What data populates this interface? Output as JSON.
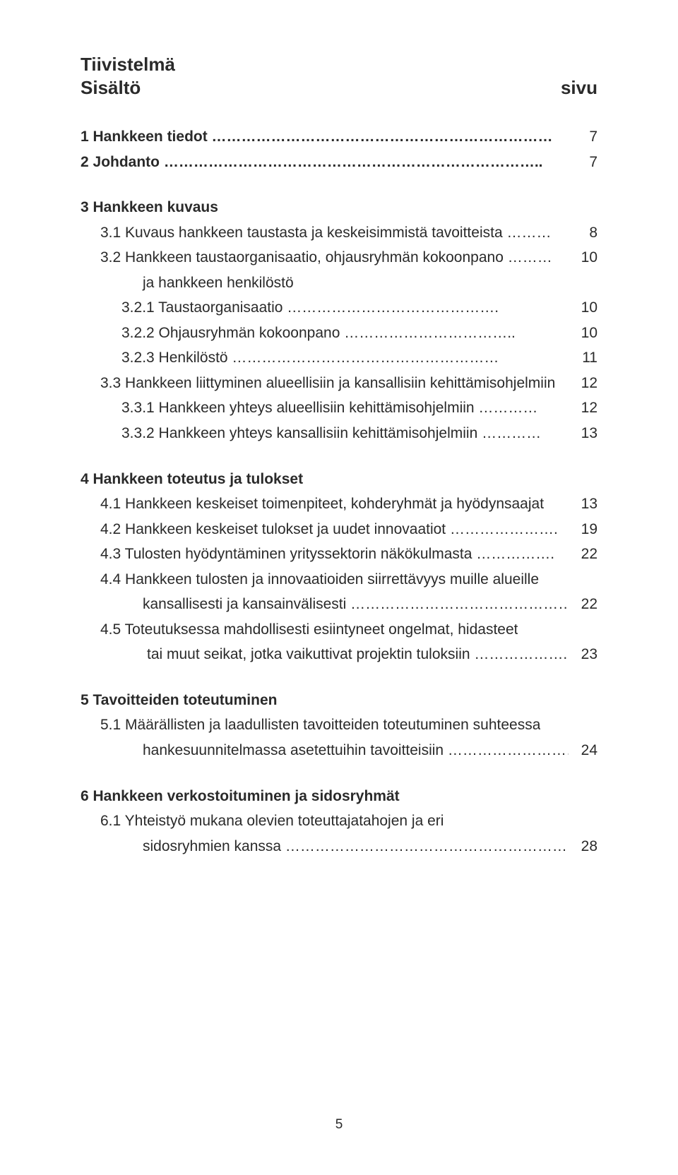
{
  "header": {
    "title": "Tiivistelmä",
    "subtitle": "Sisältö",
    "pageLabel": "sivu"
  },
  "lines": [
    {
      "label": "1 Hankkeen tiedot ……………………………………………………………",
      "page": "7",
      "bold": true,
      "indent": 0
    },
    {
      "label": "2 Johdanto …………………………………………………………………..",
      "page": "7",
      "bold": true,
      "indent": 0,
      "gapAfter": true
    },
    {
      "label": "3 Hankkeen kuvaus",
      "page": "",
      "bold": true,
      "indent": 0,
      "topGap": true
    },
    {
      "label": "3.1 Kuvaus hankkeen taustasta ja keskeisimmistä tavoitteista ………",
      "page": "8",
      "bold": false,
      "indent": 1
    },
    {
      "label": "3.2 Hankkeen taustaorganisaatio, ohjausryhmän kokoonpano ………",
      "page": "10",
      "bold": false,
      "indent": 1
    },
    {
      "label": "ja hankkeen henkilöstö",
      "page": "",
      "bold": false,
      "indent": "cont"
    },
    {
      "label": "3.2.1 Taustaorganisaatio …………………………………….",
      "page": "10",
      "bold": false,
      "indent": 2
    },
    {
      "label": "3.2.2 Ohjausryhmän kokoonpano ……………………………..",
      "page": "10",
      "bold": false,
      "indent": 2
    },
    {
      "label": "3.2.3 Henkilöstö ………………………………………………",
      "page": "11",
      "bold": false,
      "indent": 2
    },
    {
      "label": "3.3 Hankkeen liittyminen alueellisiin ja kansallisiin kehittämisohjelmiin",
      "page": "12",
      "bold": false,
      "indent": 1
    },
    {
      "label": "3.3.1 Hankkeen yhteys alueellisiin kehittämisohjelmiin …………",
      "page": "12",
      "bold": false,
      "indent": 2
    },
    {
      "label": "3.3.2 Hankkeen yhteys kansallisiin kehittämisohjelmiin …………",
      "page": "13",
      "bold": false,
      "indent": 2,
      "gapAfter": true
    },
    {
      "label": "4 Hankkeen toteutus ja tulokset",
      "page": "",
      "bold": true,
      "indent": 0,
      "topGap": true
    },
    {
      "label": "4.1 Hankkeen keskeiset toimenpiteet, kohderyhmät ja hyödynsaajat",
      "page": "13",
      "bold": false,
      "indent": 1
    },
    {
      "label": "4.2 Hankkeen keskeiset tulokset ja uudet innovaatiot ………………….",
      "page": "19",
      "bold": false,
      "indent": 1
    },
    {
      "label": "4.3 Tulosten hyödyntäminen yrityssektorin näkökulmasta …………….",
      "page": "22",
      "bold": false,
      "indent": 1
    },
    {
      "label": "4.4 Hankkeen tulosten ja innovaatioiden siirrettävyys muille alueille",
      "page": "",
      "bold": false,
      "indent": 1
    },
    {
      "label": "kansallisesti ja kansainvälisesti ………………………………………",
      "page": "22",
      "bold": false,
      "indent": "cont"
    },
    {
      "label": "4.5 Toteutuksessa mahdollisesti esiintyneet ongelmat, hidasteet",
      "page": "",
      "bold": false,
      "indent": 1
    },
    {
      "label": "tai muut seikat, jotka vaikuttivat projektin tuloksiin ………………..",
      "page": "23",
      "bold": false,
      "indent": "cont2",
      "gapAfter": true
    },
    {
      "label": "5 Tavoitteiden toteutuminen",
      "page": "",
      "bold": true,
      "indent": 0,
      "topGap": true
    },
    {
      "label": "5.1 Määrällisten ja laadullisten tavoitteiden toteutuminen suhteessa",
      "page": "",
      "bold": false,
      "indent": 1
    },
    {
      "label": "hankesuunnitelmassa asetettuihin tavoitteisiin ……………………….",
      "page": "24",
      "bold": false,
      "indent": "cont",
      "gapAfter": true
    },
    {
      "label": "6 Hankkeen verkostoituminen ja sidosryhmät",
      "page": "",
      "bold": true,
      "indent": 0,
      "topGap": true
    },
    {
      "label": "6.1 Yhteistyö mukana olevien toteuttajatahojen ja eri",
      "page": "",
      "bold": false,
      "indent": 1
    },
    {
      "label": "sidosryhmien kanssa ……………………………………………………….",
      "page": "28",
      "bold": false,
      "indent": "cont"
    }
  ],
  "footerPage": "5",
  "styles": {
    "fontFamily": "Arial",
    "titleFontSize": 26,
    "bodyFontSize": 21,
    "textColor": "#2a2a2a",
    "background": "#ffffff"
  }
}
